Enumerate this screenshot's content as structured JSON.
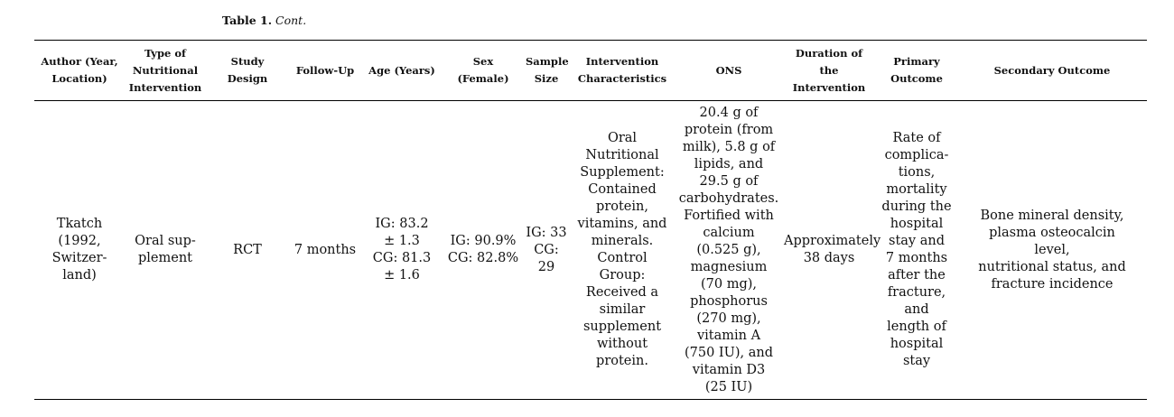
{
  "caption": {
    "label": "Table 1.",
    "continuation": "Cont."
  },
  "columns": [
    "Author (Year,\nLocation)",
    "Type of\nNutritional\nIntervention",
    "Study\nDesign",
    "Follow-Up",
    "Age (Years)",
    "Sex\n(Female)",
    "Sample\nSize",
    "Intervention\nCharacteristics",
    "ONS",
    "Duration of\nthe\nIntervention",
    "Primary\nOutcome",
    "Secondary Outcome"
  ],
  "rows": [
    {
      "author": "Tkatch\n(1992,\nSwitzer-\nland)",
      "type": "Oral sup-\nplement",
      "design": "RCT",
      "followup": "7 months",
      "age": "IG: 83.2\n± 1.3\nCG: 81.3\n± 1.6",
      "sex": "IG: 90.9%\nCG: 82.8%",
      "sample": "IG: 33\nCG: 29",
      "intervention": "Oral\nNutritional\nSupplement:\nContained\nprotein,\nvitamins, and\nminerals.\nControl\nGroup:\nReceived a\nsimilar\nsupplement\nwithout\nprotein.",
      "ons": "20.4 g of\nprotein (from\nmilk), 5.8 g of\nlipids, and\n29.5 g of\ncarbohydrates.\nFortified with\ncalcium\n(0.525 g),\nmagnesium\n(70 mg),\nphosphorus\n(270 mg),\nvitamin A\n(750 IU), and\nvitamin D3\n(25 IU)",
      "duration": "Approximately\n38 days",
      "primary": "Rate of\ncomplica-\ntions,\nmortality\nduring the\nhospital\nstay and\n7 months\nafter the\nfracture,\nand\nlength of\nhospital\nstay",
      "secondary": "Bone mineral density,\nplasma osteocalcin\nlevel,\nnutritional status, and\nfracture incidence"
    }
  ]
}
